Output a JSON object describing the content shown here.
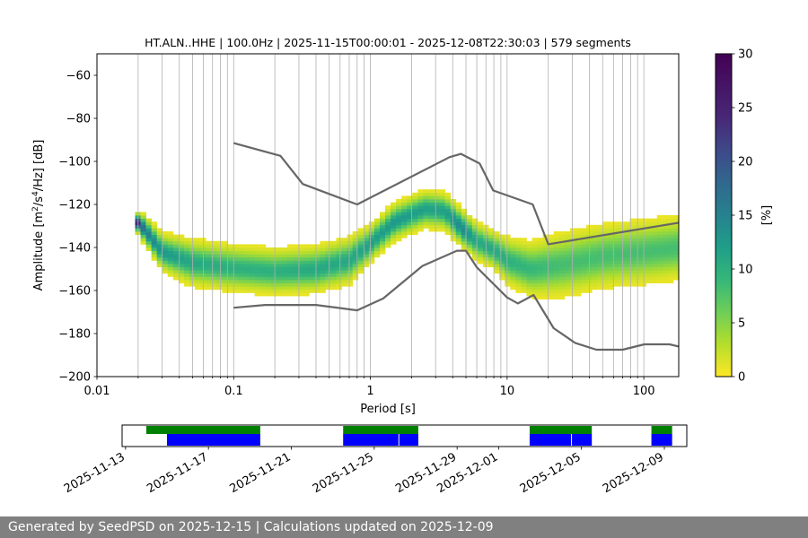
{
  "chart_data": [
    {
      "type": "heatmap",
      "title": "HT.ALN..HHE | 100.0Hz | 2025-11-15T00:00:01 - 2025-12-08T22:30:03 | 579 segments",
      "xlabel": "Period [s]",
      "ylabel_parts": [
        "Amplitude [m",
        "2",
        "/s",
        "4",
        "/Hz] [dB]"
      ],
      "xscale": "log",
      "xlim": [
        0.01,
        180
      ],
      "ylim": [
        -200,
        -50
      ],
      "x_ticks": [
        0.01,
        0.1,
        1,
        10,
        100
      ],
      "x_tick_labels": [
        "0.01",
        "0.1",
        "1",
        "10",
        "100"
      ],
      "y_ticks": [
        -200,
        -180,
        -160,
        -140,
        -120,
        -100,
        -80,
        -60
      ],
      "y_tick_labels": [
        "−200",
        "−180",
        "−160",
        "−140",
        "−120",
        "−100",
        "−80",
        "−60"
      ],
      "grid": "vertical log grid",
      "colorbar": {
        "label": "[%]",
        "range": [
          0,
          30
        ],
        "ticks": [
          0,
          5,
          10,
          15,
          20,
          25,
          30
        ],
        "tick_labels": [
          "0",
          "5",
          "10",
          "15",
          "20",
          "25",
          "30"
        ],
        "colormap": "viridis"
      },
      "noise_models": [
        {
          "name": "high",
          "color": "#666666",
          "points": [
            [
              0.1,
              -91.5
            ],
            [
              0.22,
              -97.4
            ],
            [
              0.32,
              -110.5
            ],
            [
              0.8,
              -120
            ],
            [
              3.8,
              -98
            ],
            [
              4.6,
              -96.5
            ],
            [
              6.3,
              -101
            ],
            [
              7.9,
              -113.5
            ],
            [
              15.4,
              -120
            ],
            [
              20,
              -138.5
            ],
            [
              180,
              -128.5
            ]
          ]
        },
        {
          "name": "low",
          "color": "#666666",
          "points": [
            [
              0.1,
              -168
            ],
            [
              0.17,
              -166.7
            ],
            [
              0.4,
              -166.7
            ],
            [
              0.8,
              -169.2
            ],
            [
              1.24,
              -163.7
            ],
            [
              2.4,
              -148.6
            ],
            [
              4.3,
              -141.5
            ],
            [
              5.0,
              -141.5
            ],
            [
              6.0,
              -149.2
            ],
            [
              10,
              -163.2
            ],
            [
              12,
              -166
            ],
            [
              15.6,
              -162.1
            ],
            [
              21.9,
              -177.5
            ],
            [
              31.6,
              -184.4
            ],
            [
              45,
              -187.5
            ],
            [
              70,
              -187.5
            ],
            [
              101,
              -185
            ],
            [
              154,
              -185
            ],
            [
              180,
              -186
            ]
          ]
        }
      ],
      "density_modes": [
        {
          "period": 0.019,
          "db": -120,
          "spread": 3,
          "peak_pct": 3
        },
        {
          "period": 0.02,
          "db": -129.5,
          "spread": 2,
          "peak_pct": 30
        },
        {
          "period": 0.022,
          "db": -131,
          "spread": 3,
          "peak_pct": 18
        },
        {
          "period": 0.03,
          "db": -142,
          "spread": 4,
          "peak_pct": 14
        },
        {
          "period": 0.05,
          "db": -147,
          "spread": 5,
          "peak_pct": 12
        },
        {
          "period": 0.1,
          "db": -149.5,
          "spread": 5,
          "peak_pct": 11
        },
        {
          "period": 0.2,
          "db": -151,
          "spread": 5,
          "peak_pct": 11
        },
        {
          "period": 0.4,
          "db": -150,
          "spread": 5,
          "peak_pct": 12
        },
        {
          "period": 0.7,
          "db": -146,
          "spread": 5,
          "peak_pct": 12
        },
        {
          "period": 1.0,
          "db": -138,
          "spread": 4,
          "peak_pct": 13
        },
        {
          "period": 1.5,
          "db": -128,
          "spread": 4,
          "peak_pct": 14
        },
        {
          "period": 2.5,
          "db": -122,
          "spread": 4,
          "peak_pct": 13
        },
        {
          "period": 3.5,
          "db": -123,
          "spread": 4,
          "peak_pct": 13
        },
        {
          "period": 4.7,
          "db": -131,
          "spread": 4,
          "peak_pct": 16
        },
        {
          "period": 6.0,
          "db": -137,
          "spread": 4,
          "peak_pct": 12
        },
        {
          "period": 8.0,
          "db": -141,
          "spread": 4,
          "peak_pct": 12
        },
        {
          "period": 10,
          "db": -146,
          "spread": 5,
          "peak_pct": 11
        },
        {
          "period": 15,
          "db": -150,
          "spread": 6,
          "peak_pct": 10
        },
        {
          "period": 25,
          "db": -148,
          "spread": 7,
          "peak_pct": 9
        },
        {
          "period": 50,
          "db": -144,
          "spread": 7,
          "peak_pct": 9
        },
        {
          "period": 100,
          "db": -142,
          "spread": 7,
          "peak_pct": 9
        },
        {
          "period": 180,
          "db": -140,
          "spread": 7,
          "peak_pct": 9
        }
      ]
    },
    {
      "type": "timeline",
      "x_tick_labels": [
        "2025-11-13",
        "2025-11-17",
        "2025-11-21",
        "2025-11-25",
        "2025-11-29",
        "2025-12-01",
        "2025-12-05",
        "2025-12-09"
      ],
      "x_ticks": [
        "2025-11-13",
        "2025-11-17",
        "2025-11-21",
        "2025-11-25",
        "2025-11-29",
        "2025-12-01",
        "2025-12-05",
        "2025-12-09"
      ],
      "xlim": [
        "2025-11-12T20:00",
        "2025-12-10T02:00"
      ],
      "data_available": {
        "color": "#008000",
        "intervals": [
          [
            "2025-11-14T00:00",
            "2025-11-19T12:00"
          ],
          [
            "2025-11-23T12:00",
            "2025-11-27T03:00"
          ],
          [
            "2025-12-02T12:00",
            "2025-12-05T12:00"
          ],
          [
            "2025-12-08T09:00",
            "2025-12-09T09:00"
          ]
        ]
      },
      "psd_used": {
        "color": "#0000ff",
        "intervals": [
          [
            "2025-11-15T00:00",
            "2025-11-19T12:00"
          ],
          [
            "2025-11-23T12:00",
            "2025-11-26T04:00"
          ],
          [
            "2025-11-26T05:00",
            "2025-11-27T03:00"
          ],
          [
            "2025-12-02T12:00",
            "2025-12-04T12:00"
          ],
          [
            "2025-12-04T13:00",
            "2025-12-05T12:00"
          ],
          [
            "2025-12-08T09:00",
            "2025-12-09T09:00"
          ]
        ]
      }
    }
  ],
  "footer": {
    "text": "Generated by SeedPSD on 2025-12-15 | Calculations updated on 2025-12-09"
  }
}
